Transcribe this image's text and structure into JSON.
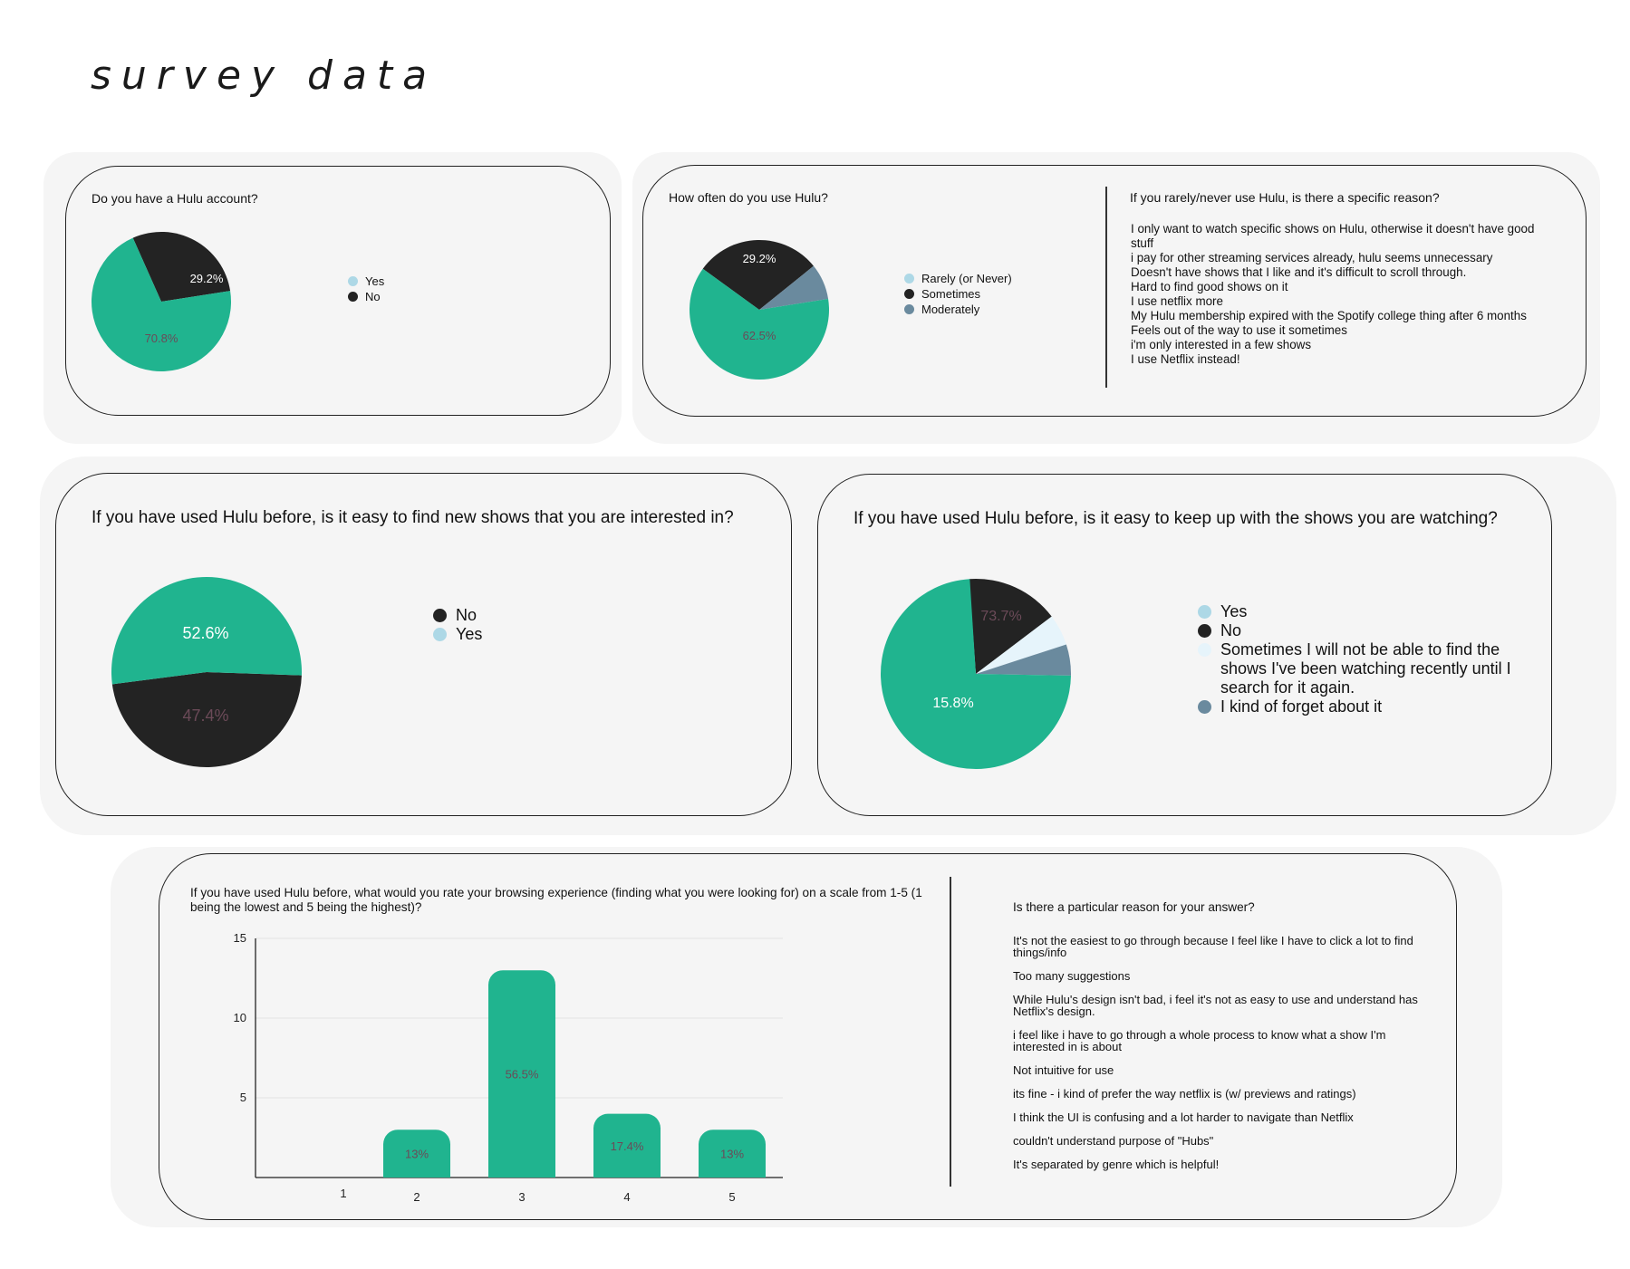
{
  "page": {
    "title": "survey data"
  },
  "colors": {
    "teal": "#20b48f",
    "dark": "#232323",
    "lightblue": "#add8e6",
    "slate": "#6a8a9e",
    "pale": "#e6f4fb",
    "panel": "#f5f5f5"
  },
  "chart_data": [
    {
      "type": "pie",
      "title": "Do you have a Hulu account?",
      "labels": [
        "Yes",
        "No"
      ],
      "values": [
        70.8,
        29.2
      ],
      "value_labels": [
        "70.8%",
        "29.2%"
      ],
      "legend": "right"
    },
    {
      "type": "pie",
      "title": "How often do you use Hulu?",
      "labels": [
        "Rarely (or Never)",
        "Sometimes",
        "Moderately"
      ],
      "values": [
        62.5,
        29.2,
        8.3
      ],
      "value_labels": [
        "62.5%",
        "29.2%",
        ""
      ],
      "legend": "right"
    },
    {
      "type": "pie",
      "title": "If you have used Hulu before, is it easy to find new shows that you are interested in?",
      "labels": [
        "No",
        "Yes"
      ],
      "values": [
        52.6,
        47.4
      ],
      "value_labels": [
        "52.6%",
        "47.4%"
      ],
      "legend": "right"
    },
    {
      "type": "pie",
      "title": "If you have used Hulu before, is it easy to keep up with the shows you are watching?",
      "labels": [
        "Yes",
        "No",
        "Sometimes I will not be able to find the shows I've been watching recently until I search for it again.",
        "I kind of forget about it"
      ],
      "values": [
        73.7,
        15.8,
        5.3,
        5.3
      ],
      "value_labels": [
        "73.7%",
        "15.8%",
        "",
        ""
      ],
      "legend": "right"
    },
    {
      "type": "bar",
      "title": "If you have used Hulu before, what would you rate your browsing experience (finding what you were looking for) on a scale from 1-5 (1 being the lowest and 5 being the highest)?",
      "categories": [
        "1",
        "2",
        "3",
        "4",
        "5"
      ],
      "values": [
        0,
        3,
        13,
        4,
        3
      ],
      "value_labels": [
        "",
        "13%",
        "56.5%",
        "17.4%",
        "13%"
      ],
      "ylim": [
        0,
        15
      ],
      "yticks": [
        "5",
        "10",
        "15"
      ],
      "grid": true
    }
  ],
  "q2_reasons": {
    "title": "If you rarely/never use Hulu, is there a specific reason?",
    "items": [
      "I only want to watch specific shows on Hulu, otherwise it doesn't have good stuff",
      "i pay for other streaming services already, hulu seems unnecessary",
      "Doesn't have shows that I like and it's difficult to scroll through.",
      "Hard to find good shows on it",
      "I use netflix more",
      "My Hulu membership expired with the Spotify college thing after 6 months",
      "Feels out of the way to use it sometimes",
      "i'm only interested in a few shows",
      "I use Netflix instead!"
    ]
  },
  "q5_reasons": {
    "title": "Is there a particular reason for your answer?",
    "items": [
      "It's not the easiest to go through because I feel like I have to click a lot to find things/info",
      "Too many suggestions",
      "While Hulu's design isn't bad, i feel it's not as easy to use and understand has Netflix's design.",
      "i feel like i have to go through a whole process to know what a show I'm interested in is about",
      "Not intuitive for use",
      "its fine - i kind of prefer the way netflix is (w/ previews and ratings)",
      "I think the UI is confusing and a lot harder to navigate than Netflix",
      "couldn't understand purpose of \"Hubs\"",
      "It's separated by genre which is helpful!"
    ]
  }
}
